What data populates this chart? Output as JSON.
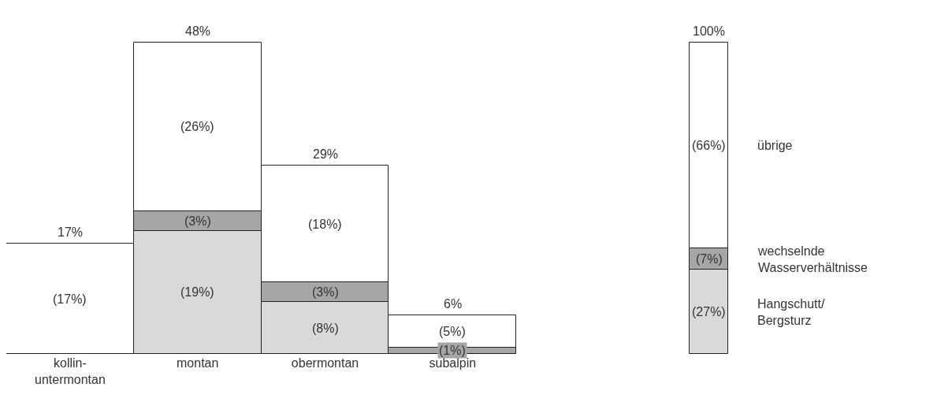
{
  "chart_data": [
    {
      "type": "bar",
      "stacked": true,
      "categories": [
        "kollin-\nuntermontan",
        "montan",
        "obermontan",
        "subalpin"
      ],
      "series": [
        {
          "color": "#d9d9d9",
          "values": [
            0,
            19,
            8,
            0
          ],
          "value_labels": [
            null,
            "(19%)",
            "(8%)",
            null
          ]
        },
        {
          "color": "#a6a6a6",
          "values": [
            0,
            3,
            3,
            1
          ],
          "value_labels": [
            null,
            "(3%)",
            "(3%)",
            "(1%)"
          ]
        },
        {
          "color": "#ffffff",
          "values": [
            17,
            26,
            18,
            5
          ],
          "value_labels": [
            "(17%)",
            "(26%)",
            "(18%)",
            "(5%)"
          ]
        }
      ],
      "totals": [
        "17%",
        "48%",
        "29%",
        "6%"
      ],
      "legend": false,
      "grid": false,
      "tick_labels": "x"
    },
    {
      "type": "bar",
      "stacked": true,
      "categories": [
        null
      ],
      "series": [
        {
          "name": "Hangschutt/\nBergsturz",
          "color": "#d9d9d9",
          "values": [
            27
          ],
          "value_labels": [
            "(27%)"
          ]
        },
        {
          "name": "wechselnde\nWasserverhältnisse",
          "color": "#a6a6a6",
          "values": [
            7
          ],
          "value_labels": [
            "(7%)"
          ]
        },
        {
          "name": "übrige",
          "color": "#ffffff",
          "values": [
            66
          ],
          "value_labels": [
            "(66%)"
          ]
        }
      ],
      "totals": [
        "100%"
      ],
      "legend": false,
      "grid": false,
      "tick_labels": false
    }
  ]
}
